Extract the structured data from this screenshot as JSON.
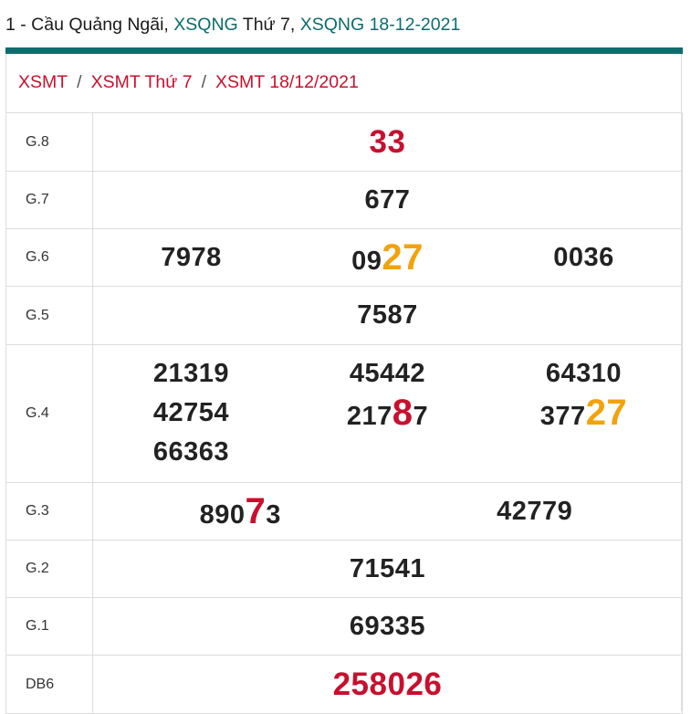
{
  "header": {
    "prefix": "1 - Cầu Quảng Ngãi,",
    "link1": "XSQNG",
    "middle": "Thứ 7,",
    "link2": "XSQNG 18-12-2021"
  },
  "breadcrumb": {
    "items": [
      "XSMT",
      "XSMT Thứ 7",
      "XSMT 18/12/2021"
    ],
    "separator": "/"
  },
  "colors": {
    "accent_teal": "#0f6d6d",
    "highlight_red": "#c8102e",
    "highlight_orange": "#f2a20c"
  },
  "results": {
    "g8": {
      "label": "G.8",
      "value": "33"
    },
    "g7": {
      "label": "G.7",
      "value": "677"
    },
    "g6": {
      "label": "G.6",
      "n1": "7978",
      "n2_pre": "09",
      "n2_hi": "27",
      "n3": "0036"
    },
    "g5": {
      "label": "G.5",
      "value": "7587"
    },
    "g4": {
      "label": "G.4",
      "c1": [
        "21319",
        "42754",
        "66363"
      ],
      "c2_top": "45442",
      "c2_pre": "217",
      "c2_hi": "8",
      "c2_post": "7",
      "c3_top": "64310",
      "c3_pre": "377",
      "c3_hi": "27"
    },
    "g3": {
      "label": "G.3",
      "n1_pre": "890",
      "n1_hi": "7",
      "n1_post": "3",
      "n2": "42779"
    },
    "g2": {
      "label": "G.2",
      "value": "71541"
    },
    "g1": {
      "label": "G.1",
      "value": "69335"
    },
    "db": {
      "label": "DB6",
      "value": "258026"
    }
  }
}
